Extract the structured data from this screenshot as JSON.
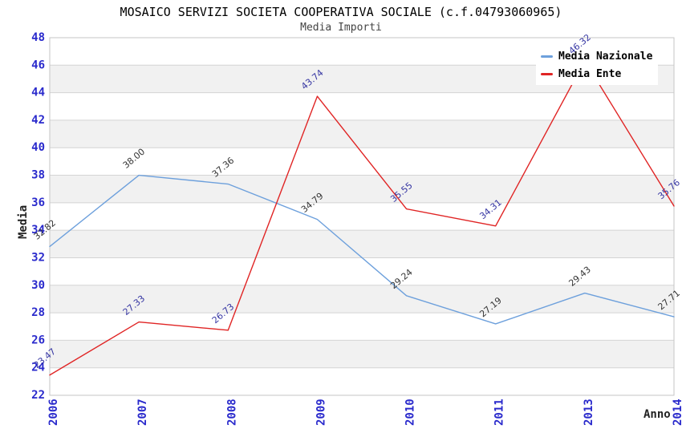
{
  "chart_data": {
    "type": "line",
    "title": "MOSAICO SERVIZI SOCIETA COOPERATIVA SOCIALE (c.f.04793060965)",
    "subtitle": "Media Importi",
    "xlabel": "Anno",
    "ylabel": "Media",
    "categories": [
      "2006",
      "2007",
      "2008",
      "2009",
      "2010",
      "2011",
      "2013",
      "2014"
    ],
    "series": [
      {
        "name": "Media Nazionale",
        "color": "#6da0dc",
        "label_color": "#333333",
        "values": [
          32.82,
          38.0,
          37.36,
          34.79,
          29.24,
          27.19,
          29.43,
          27.71
        ]
      },
      {
        "name": "Media Ente",
        "color": "#e02424",
        "label_color": "#3434a2",
        "values": [
          23.47,
          27.33,
          26.73,
          43.74,
          35.55,
          34.31,
          46.32,
          35.76
        ]
      }
    ],
    "ylim": [
      22,
      48
    ],
    "ytick_step": 2,
    "grid": "horizontal-alternating-bands",
    "legend_position": "top-right",
    "colors": {
      "tick_label": "#2a2acc",
      "band_gray": "#f1f1f1",
      "band_white": "#ffffff",
      "grid_line": "#d4d4d4",
      "plot_border": "#c6c6c6"
    }
  }
}
